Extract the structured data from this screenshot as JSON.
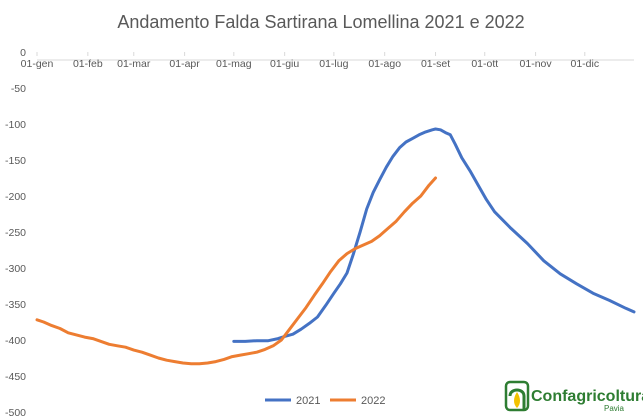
{
  "chart_data": {
    "type": "line",
    "title": "Andamento Falda Sartirana Lomellina 2021 e 2022",
    "xlabel": "",
    "ylabel": "",
    "x_ticks": [
      "01-gen",
      "01-feb",
      "01-mar",
      "01-apr",
      "01-mag",
      "01-giu",
      "01-lug",
      "01-ago",
      "01-set",
      "01-ott",
      "01-nov",
      "01-dic"
    ],
    "y_ticks": [
      "0",
      "-50",
      "-100",
      "-150",
      "-200",
      "-250",
      "-300",
      "-350",
      "-400",
      "-450",
      "-500"
    ],
    "ylim": [
      -500,
      0
    ],
    "x_unit": "day-of-year",
    "xlim": [
      1,
      365
    ],
    "grid": false,
    "legend_position": "bottom",
    "series": [
      {
        "name": "2021",
        "color": "#4472c4",
        "x": [
          121,
          128,
          135,
          142,
          148,
          152,
          157,
          162,
          167,
          172,
          177,
          182,
          186,
          190,
          194,
          198,
          202,
          206,
          210,
          214,
          218,
          222,
          226,
          230,
          234,
          238,
          242,
          244,
          247,
          250,
          253,
          256,
          260,
          265,
          270,
          275,
          280,
          290,
          300,
          310,
          320,
          330,
          340,
          350,
          360,
          365
        ],
        "y": [
          -402,
          -402,
          -401,
          -401,
          -398,
          -395,
          -392,
          -385,
          -377,
          -368,
          -352,
          -335,
          -322,
          -307,
          -280,
          -250,
          -218,
          -195,
          -177,
          -160,
          -145,
          -133,
          -125,
          -120,
          -115,
          -111,
          -108,
          -107,
          -108,
          -112,
          -115,
          -128,
          -147,
          -165,
          -185,
          -205,
          -222,
          -245,
          -266,
          -290,
          -308,
          -322,
          -335,
          -345,
          -356,
          -361
        ]
      },
      {
        "name": "2022",
        "color": "#ed7d31",
        "x": [
          1,
          5,
          10,
          15,
          20,
          30,
          35,
          40,
          45,
          50,
          55,
          60,
          65,
          70,
          75,
          80,
          85,
          90,
          95,
          100,
          105,
          110,
          115,
          120,
          125,
          130,
          135,
          140,
          145,
          150,
          155,
          160,
          165,
          170,
          175,
          180,
          185,
          190,
          195,
          200,
          205,
          210,
          215,
          220,
          225,
          230,
          235,
          240,
          244
        ],
        "y": [
          -372,
          -375,
          -380,
          -384,
          -390,
          -396,
          -398,
          -402,
          -406,
          -408,
          -410,
          -414,
          -417,
          -421,
          -425,
          -428,
          -430,
          -432,
          -433,
          -433,
          -432,
          -430,
          -427,
          -423,
          -421,
          -419,
          -417,
          -413,
          -408,
          -400,
          -385,
          -370,
          -355,
          -338,
          -322,
          -305,
          -290,
          -280,
          -273,
          -268,
          -263,
          -255,
          -245,
          -235,
          -222,
          -210,
          -200,
          -185,
          -175
        ]
      }
    ]
  },
  "legend": {
    "items": [
      {
        "label": "2021",
        "color": "#4472c4"
      },
      {
        "label": "2022",
        "color": "#ed7d31"
      }
    ]
  },
  "logo": {
    "name": "Confagricoltura",
    "sub": "Pavia"
  }
}
